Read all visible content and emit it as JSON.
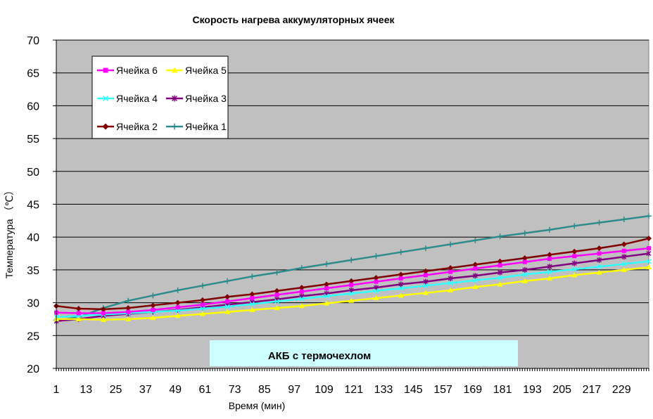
{
  "chart_data": {
    "type": "line",
    "title": "Скорость нагрева аккумуляторных ячеек",
    "xlabel": "Время (мин)",
    "ylabel": "Температура （℃）",
    "ylim": [
      20,
      70
    ],
    "yticks": [
      20,
      25,
      30,
      35,
      40,
      45,
      50,
      55,
      60,
      65,
      70
    ],
    "xlim": [
      1,
      240
    ],
    "xticks": [
      1,
      13,
      25,
      37,
      49,
      61,
      73,
      85,
      97,
      109,
      121,
      133,
      145,
      157,
      169,
      181,
      193,
      205,
      217,
      229
    ],
    "grid": "horizontal",
    "annotation": "АКБ с термочехлом",
    "legend": {
      "placement": "top-left",
      "rows": [
        [
          "Ячейка 6",
          "Ячейка 5"
        ],
        [
          "Ячейка 4",
          "Ячейка 3"
        ],
        [
          "Ячейка 2",
          "Ячейка 1"
        ]
      ]
    },
    "colors": {
      "plot_background": "#c0c0c0",
      "annotation_background": "#ccffff"
    },
    "series": [
      {
        "name": "Ячейка 1",
        "color": "#2e8b8b",
        "marker": "plus",
        "x": [
          1,
          10,
          20,
          30,
          40,
          50,
          60,
          70,
          80,
          90,
          100,
          110,
          120,
          130,
          140,
          150,
          160,
          170,
          180,
          190,
          200,
          210,
          220,
          230,
          240
        ],
        "y": [
          27.3,
          27.8,
          29.2,
          30.3,
          31.1,
          31.9,
          32.6,
          33.3,
          34.0,
          34.6,
          35.3,
          35.9,
          36.5,
          37.1,
          37.7,
          38.3,
          38.9,
          39.5,
          40.1,
          40.6,
          41.1,
          41.7,
          42.2,
          42.7,
          43.2
        ]
      },
      {
        "name": "Ячейка 2",
        "color": "#800000",
        "marker": "diamond",
        "x": [
          1,
          10,
          20,
          30,
          40,
          50,
          60,
          70,
          80,
          90,
          100,
          110,
          120,
          130,
          140,
          150,
          160,
          170,
          180,
          190,
          200,
          210,
          220,
          230,
          240
        ],
        "y": [
          29.5,
          29.1,
          29.0,
          29.2,
          29.6,
          30.0,
          30.4,
          30.9,
          31.3,
          31.8,
          32.3,
          32.8,
          33.3,
          33.8,
          34.3,
          34.8,
          35.3,
          35.8,
          36.3,
          36.8,
          37.3,
          37.8,
          38.3,
          38.9,
          39.8
        ]
      },
      {
        "name": "Ячейка 3",
        "color": "#800080",
        "marker": "asterisk",
        "x": [
          1,
          10,
          20,
          30,
          40,
          50,
          60,
          70,
          80,
          90,
          100,
          110,
          120,
          130,
          140,
          150,
          160,
          170,
          180,
          190,
          200,
          210,
          220,
          230,
          240
        ],
        "y": [
          27.2,
          27.5,
          28.0,
          28.3,
          28.6,
          28.9,
          29.3,
          29.7,
          30.1,
          30.5,
          31.0,
          31.4,
          31.9,
          32.3,
          32.8,
          33.2,
          33.7,
          34.1,
          34.6,
          35.0,
          35.5,
          36.0,
          36.5,
          37.0,
          37.5
        ]
      },
      {
        "name": "Ячейка 4",
        "color": "#33ffff",
        "marker": "cross",
        "x": [
          1,
          10,
          20,
          30,
          40,
          50,
          60,
          70,
          80,
          90,
          100,
          110,
          120,
          130,
          140,
          150,
          160,
          170,
          180,
          190,
          200,
          210,
          220,
          230,
          240
        ],
        "y": [
          27.8,
          28.0,
          28.2,
          28.4,
          28.6,
          28.8,
          29.1,
          29.4,
          29.8,
          30.2,
          30.6,
          31.0,
          31.4,
          31.8,
          32.2,
          32.6,
          33.0,
          33.4,
          33.8,
          34.3,
          34.7,
          35.1,
          35.5,
          35.9,
          36.3
        ]
      },
      {
        "name": "Ячейка 5",
        "color": "#ffff00",
        "marker": "triangle",
        "x": [
          1,
          10,
          20,
          30,
          40,
          50,
          60,
          70,
          80,
          90,
          100,
          110,
          120,
          130,
          140,
          150,
          160,
          170,
          180,
          190,
          200,
          210,
          220,
          230,
          240
        ],
        "y": [
          27.5,
          27.5,
          27.4,
          27.5,
          27.7,
          28.0,
          28.3,
          28.6,
          28.9,
          29.2,
          29.5,
          29.9,
          30.3,
          30.7,
          31.1,
          31.5,
          31.9,
          32.4,
          32.8,
          33.3,
          33.7,
          34.2,
          34.6,
          35.0,
          35.4
        ]
      },
      {
        "name": "Ячейка 6",
        "color": "#ff00ff",
        "marker": "square",
        "x": [
          1,
          10,
          20,
          30,
          40,
          50,
          60,
          70,
          80,
          90,
          100,
          110,
          120,
          130,
          140,
          150,
          160,
          170,
          180,
          190,
          200,
          210,
          220,
          230,
          240
        ],
        "y": [
          28.5,
          28.4,
          28.4,
          28.6,
          28.9,
          29.3,
          29.7,
          30.2,
          30.7,
          31.2,
          31.7,
          32.2,
          32.7,
          33.2,
          33.7,
          34.2,
          34.7,
          35.2,
          35.7,
          36.2,
          36.7,
          37.1,
          37.5,
          37.9,
          38.3
        ]
      }
    ]
  }
}
